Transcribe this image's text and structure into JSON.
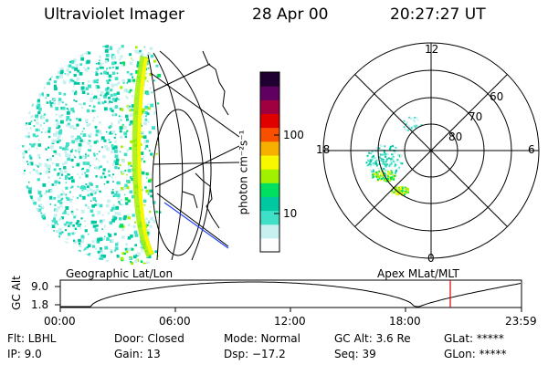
{
  "header": {
    "instrument": "Ultraviolet Imager",
    "date": "28 Apr 00",
    "time": "20:27:27 UT"
  },
  "geo_panel": {
    "label": "Geographic Lat/Lon"
  },
  "colorbar": {
    "unit_label": "photon cm⁻²s⁻¹",
    "ticks": [
      "100",
      "10"
    ],
    "colors": [
      "#fdfdfd",
      "#c8f0f0",
      "#40e0c8",
      "#00c8a0",
      "#00e060",
      "#a0f000",
      "#f8f800",
      "#f8b000",
      "#f85000",
      "#e00000",
      "#a00040",
      "#600060",
      "#200030"
    ]
  },
  "polar_panel": {
    "label": "Apex MLat/MLT",
    "mlt_labels": {
      "top": "12",
      "bottom": "0",
      "left": "18",
      "right": "6"
    },
    "lat_labels": [
      "60",
      "70",
      "80"
    ]
  },
  "timeline": {
    "axis_label": "GC Alt",
    "y_ticks": [
      "9.0",
      "1.8"
    ],
    "x_ticks": [
      "00:00",
      "06:00",
      "12:00",
      "18:00",
      "23:59"
    ],
    "marker_color": "#e00000"
  },
  "status": {
    "flt": "Flt: LBHL",
    "ip": "IP:  9.0",
    "door": "Door: Closed",
    "gain": "Gain: 13",
    "mode": "Mode: Normal",
    "dsp": "Dsp:  −17.2",
    "gc_alt": "GC Alt: 3.6 Re",
    "seq": "Seq: 39",
    "glat": "GLat: *****",
    "glon": "GLon: *****"
  }
}
